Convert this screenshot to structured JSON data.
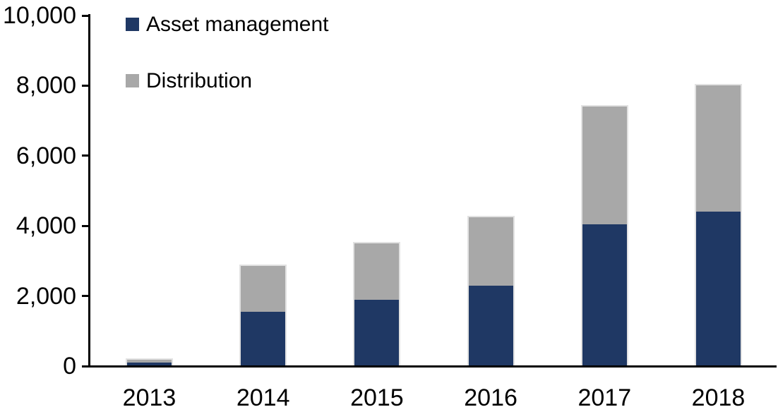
{
  "chart_data": {
    "type": "bar",
    "stacked": true,
    "title": "",
    "xlabel": "",
    "ylabel": "",
    "categories": [
      "2013",
      "2014",
      "2015",
      "2016",
      "2017",
      "2018"
    ],
    "series": [
      {
        "name": "Asset management",
        "color": "#1F3864",
        "values": [
          100,
          1550,
          1900,
          2300,
          4050,
          4400
        ]
      },
      {
        "name": "Distribution",
        "color": "#A8A8A8",
        "values": [
          90,
          1300,
          1600,
          1950,
          3350,
          3600
        ]
      }
    ],
    "totals": [
      190,
      2850,
      3500,
      4250,
      7400,
      8000
    ],
    "ylim": [
      0,
      10000
    ],
    "yticks": [
      0,
      2000,
      4000,
      6000,
      8000,
      10000
    ],
    "ytick_labels": [
      "0",
      "2,000",
      "4,000",
      "6,000",
      "8,000",
      "10,000"
    ],
    "grid": false,
    "legend_position": "top-left",
    "axis_color": "#000000",
    "bar_edge_color": "#E2E2E2"
  }
}
